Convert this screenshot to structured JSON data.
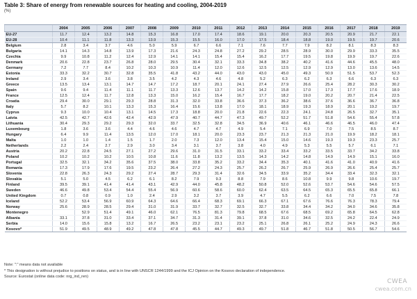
{
  "title": "Table 3: Share of energy from renewable sources for heating and cooling, 2004-2019",
  "subtitle": "(%)",
  "years": [
    "2004",
    "2005",
    "2006",
    "2007",
    "2008",
    "2009",
    "2010",
    "2011",
    "2012",
    "2013",
    "2014",
    "2015",
    "2016",
    "2017",
    "2018",
    "2019"
  ],
  "rows": [
    {
      "name": "EU-27",
      "group": "agg",
      "values": [
        "11.7",
        "12.4",
        "13.2",
        "14.8",
        "15.3",
        "16.8",
        "17.0",
        "17.4",
        "18.6",
        "19.1",
        "20.0",
        "20.3",
        "20.5",
        "20.9",
        "21.7",
        "22.1"
      ]
    },
    {
      "name": "EU-28",
      "group": "agg",
      "values": [
        "10.4",
        "11.1",
        "11.8",
        "13.3",
        "13.9",
        "15.3",
        "15.5",
        "16.0",
        "17.0",
        "17.5",
        "18.4",
        "18.8",
        "19.0",
        "19.5",
        "19.7",
        "20.6"
      ]
    },
    {
      "name": "Belgium",
      "values": [
        "2.8",
        "3.4",
        "3.7",
        "4.6",
        "5.0",
        "5.9",
        "6.7",
        "6.6",
        "7.1",
        "7.6",
        "7.7",
        "7.9",
        "8.2",
        "8.1",
        "8.3",
        "8.3"
      ]
    },
    {
      "name": "Bulgaria",
      "values": [
        "14.1",
        "14.3",
        "14.8",
        "13.9",
        "17.3",
        "21.6",
        "24.3",
        "24.8",
        "27.2",
        "29.2",
        "28.5",
        "28.9",
        "30.0",
        "29.9",
        "33.3",
        "35.5"
      ]
    },
    {
      "name": "Czechia",
      "values": [
        "9.9",
        "10.8",
        "11.2",
        "12.4",
        "12.9",
        "14.1",
        "14.1",
        "15.4",
        "15.4",
        "16.2",
        "17.7",
        "19.5",
        "19.8",
        "19.9",
        "19.7",
        "22.6"
      ]
    },
    {
      "name": "Denmark",
      "values": [
        "20.6",
        "22.8",
        "23.7",
        "26.8",
        "28.0",
        "29.5",
        "30.4",
        "32.1",
        "33.3",
        "34.8",
        "38.2",
        "40.2",
        "41.6",
        "44.6",
        "45.5",
        "48.0"
      ]
    },
    {
      "name": "Germany",
      "values": [
        "7.2",
        "7.7",
        "8.4",
        "10.2",
        "10.3",
        "10.9",
        "11.4",
        "12.0",
        "12.6",
        "12.5",
        "12.5",
        "12.9",
        "12.9",
        "13.0",
        "13.6",
        "14.5"
      ]
    },
    {
      "name": "Estonia",
      "values": [
        "33.3",
        "32.2",
        "30.7",
        "32.8",
        "35.5",
        "41.8",
        "43.2",
        "44.0",
        "43.0",
        "43.0",
        "45.0",
        "49.3",
        "50.9",
        "51.5",
        "53.7",
        "52.3"
      ]
    },
    {
      "name": "Ireland",
      "values": [
        "2.9",
        "3.4",
        "3.6",
        "3.8",
        "3.5",
        "4.2",
        "4.3",
        "4.6",
        "4.8",
        "5.2",
        "6.3",
        "6.2",
        "6.3",
        "6.6",
        "6.3",
        "6.3"
      ]
    },
    {
      "name": "Greece",
      "values": [
        "13.5",
        "13.4",
        "13.1",
        "14.7",
        "14.7",
        "17.2",
        "18.7",
        "20.1",
        "24.1",
        "27.4",
        "27.9",
        "26.6",
        "25.4",
        "28.2",
        "30.3",
        "30.2"
      ]
    },
    {
      "name": "Spain",
      "values": [
        "9.6",
        "9.4",
        "11.4",
        "11.1",
        "11.7",
        "13.3",
        "12.6",
        "13.7",
        "14.2",
        "14.2",
        "15.8",
        "17.0",
        "17.3",
        "17.7",
        "17.6",
        "18.9"
      ]
    },
    {
      "name": "France",
      "values": [
        "12.5",
        "12.4",
        "11.7",
        "12.8",
        "13.3",
        "15.0",
        "16.2",
        "15.4",
        "16.7",
        "17.7",
        "18.2",
        "19.0",
        "20.2",
        "20.7",
        "21.4",
        "22.5"
      ]
    },
    {
      "name": "Croatia",
      "values": [
        "29.4",
        "30.0",
        "29.1",
        "29.3",
        "28.8",
        "31.3",
        "32.0",
        "33.8",
        "36.6",
        "37.3",
        "36.2",
        "38.6",
        "37.6",
        "36.6",
        "36.7",
        "36.8"
      ]
    },
    {
      "name": "Italy",
      "values": [
        "5.7",
        "8.2",
        "10.1",
        "13.3",
        "15.3",
        "16.4",
        "15.6",
        "13.8",
        "17.0",
        "18.1",
        "18.9",
        "19.3",
        "18.9",
        "20.1",
        "19.2",
        "19.7"
      ]
    },
    {
      "name": "Cyprus",
      "values": [
        "9.3",
        "10.0",
        "10.4",
        "13.1",
        "14.5",
        "17.3",
        "18.8",
        "20.0",
        "21.8",
        "22.6",
        "22.3",
        "24.1",
        "24.8",
        "26.5",
        "32.7",
        "35.1"
      ]
    },
    {
      "name": "Latvia",
      "values": [
        "42.5",
        "42.7",
        "42.6",
        "42.4",
        "42.9",
        "47.9",
        "40.7",
        "44.7",
        "47.3",
        "49.7",
        "52.2",
        "51.7",
        "51.8",
        "54.6",
        "55.4",
        "57.8"
      ]
    },
    {
      "name": "Lithuania",
      "values": [
        "30.4",
        "29.3",
        "29.2",
        "29.3",
        "32.0",
        "33.7",
        "32.5",
        "32.8",
        "34.5",
        "36.9",
        "40.6",
        "46.1",
        "46.6",
        "46.5",
        "46.0",
        "47.4"
      ]
    },
    {
      "name": "Luxembourg",
      "values": [
        "1.8",
        "3.6",
        "3.6",
        "4.4",
        "4.6",
        "4.6",
        "4.7",
        "4.7",
        "4.9",
        "5.4",
        "7.1",
        "6.9",
        "7.0",
        "7.5",
        "8.5",
        "8.7"
      ]
    },
    {
      "name": "Hungary",
      "values": [
        "6.4",
        "9.9",
        "11.4",
        "13.5",
        "12.0",
        "17.0",
        "18.1",
        "20.0",
        "23.3",
        "23.7",
        "21.3",
        "21.3",
        "21.0",
        "19.9",
        "18.2",
        "18.1"
      ]
    },
    {
      "name": "Malta",
      "values": [
        "1.0",
        "1.0",
        "1.4",
        "1.5",
        "1.7",
        "2.0",
        "7.3",
        "12.0",
        "13.4",
        "15.4",
        "15.0",
        "14.6",
        "19.3",
        "19.3",
        "23.3",
        "25.7"
      ]
    },
    {
      "name": "Netherlands",
      "values": [
        "2.2",
        "2.4",
        "2.7",
        "2.9",
        "3.0",
        "3.4",
        "3.1",
        "3.7",
        "3.8",
        "4.0",
        "4.9",
        "5.3",
        "5.5",
        "5.7",
        "6.1",
        "7.1"
      ]
    },
    {
      "name": "Austria",
      "values": [
        "20.2",
        "22.8",
        "24.5",
        "27.1",
        "27.2",
        "29.6",
        "31.0",
        "31.5",
        "33.1",
        "33.2",
        "33.4",
        "33.2",
        "33.5",
        "33.7",
        "34.2",
        "33.8"
      ]
    },
    {
      "name": "Poland",
      "values": [
        "10.2",
        "10.2",
        "10.2",
        "10.5",
        "10.8",
        "11.6",
        "11.8",
        "13.2",
        "13.5",
        "14.3",
        "14.2",
        "14.8",
        "14.9",
        "14.9",
        "15.1",
        "16.0"
      ]
    },
    {
      "name": "Portugal",
      "values": [
        "32.5",
        "32.1",
        "34.2",
        "35.6",
        "37.5",
        "38.0",
        "33.8",
        "35.2",
        "33.2",
        "34.4",
        "35.3",
        "40.1",
        "41.6",
        "41.0",
        "40.9",
        "41.6"
      ]
    },
    {
      "name": "Romania",
      "values": [
        "17.3",
        "17.9",
        "17.6",
        "19.5",
        "23.2",
        "26.4",
        "27.2",
        "24.3",
        "25.7",
        "26.2",
        "26.7",
        "25.9",
        "26.9",
        "26.6",
        "25.4",
        "25.7"
      ]
    },
    {
      "name": "Slovenia",
      "values": [
        "22.8",
        "26.3",
        "24.3",
        "29.2",
        "27.4",
        "28.7",
        "29.3",
        "31.4",
        "32.6",
        "34.5",
        "33.9",
        "35.2",
        "34.4",
        "33.4",
        "32.3",
        "32.1"
      ]
    },
    {
      "name": "Slovakia",
      "values": [
        "5.1",
        "5.0",
        "4.5",
        "6.2",
        "6.1",
        "8.2",
        "7.9",
        "9.3",
        "8.8",
        "7.9",
        "8.6",
        "10.8",
        "9.9",
        "9.8",
        "10.6",
        "19.7"
      ]
    },
    {
      "name": "Finland",
      "values": [
        "39.5",
        "39.1",
        "41.4",
        "41.4",
        "43.1",
        "42.9",
        "44.0",
        "45.8",
        "48.2",
        "50.8",
        "52.0",
        "52.6",
        "53.7",
        "54.6",
        "54.6",
        "57.5"
      ]
    },
    {
      "name": "Sweden",
      "values": [
        "46.6",
        "49.8",
        "53.4",
        "54.4",
        "55.4",
        "56.9",
        "60.6",
        "58.6",
        "60.0",
        "62.4",
        "63.5",
        "64.5",
        "65.3",
        "65.5",
        "65.8",
        "66.1"
      ]
    },
    {
      "name": "United Kingdom",
      "values": [
        "0.7",
        "0.8",
        "0.9",
        "1.0",
        "2.4",
        "2.9",
        "3.2",
        "3.7",
        "3.9",
        "4.7",
        "5.5",
        "6.2",
        "6.6",
        "7.0",
        "7.5",
        "7.8"
      ]
    },
    {
      "name": "Iceland",
      "sep": true,
      "values": [
        "52.2",
        "53.4",
        "56.9",
        "60.9",
        "64.3",
        "64.6",
        "66.4",
        "68.3",
        "69.1",
        "66.3",
        "67.1",
        "67.6",
        "76.6",
        "76.3",
        "78.3",
        "79.4"
      ]
    },
    {
      "name": "Norway",
      "values": [
        "25.6",
        "28.9",
        "28.5",
        "29.4",
        "31.0",
        "31.9",
        "33.7",
        "32.7",
        "32.5",
        "32.7",
        "33.8",
        "34.4",
        "34.2",
        "34.0",
        "34.6",
        "35.8"
      ]
    },
    {
      "name": "Montenegro",
      "sep": true,
      "values": [
        "",
        "52.9",
        "51.4",
        "49.1",
        "46.0",
        "62.1",
        "76.5",
        "81.3",
        "79.8",
        "68.5",
        "67.6",
        "68.5",
        "69.2",
        "65.8",
        "64.5",
        "62.8"
      ]
    },
    {
      "name": "Albania",
      "values": [
        "33.1",
        "37.8",
        "31.0",
        "33.4",
        "37.1",
        "34.7",
        "31.3",
        "31.4",
        "39.1",
        "37.8",
        "31.0",
        "34.6",
        "32.5",
        "24.2",
        "22.4",
        "24.9"
      ]
    },
    {
      "name": "Serbia",
      "values": [
        "14.0",
        "15.6",
        "15.8",
        "13.2",
        "16.7",
        "26.5",
        "23.2",
        "23.1",
        "23.2",
        "25.1",
        "26.8",
        "26.1",
        "25.2",
        "24.9",
        "24.3",
        "26.6"
      ]
    },
    {
      "name": "Kosovo*",
      "sep": true,
      "last": true,
      "values": [
        "51.9",
        "49.5",
        "48.9",
        "49.2",
        "47.8",
        "47.8",
        "45.5",
        "44.7",
        "49.3",
        "49.7",
        "51.8",
        "46.7",
        "51.8",
        "50.5",
        "56.7",
        "54.6"
      ]
    }
  ],
  "notes": [
    "Note: \":\" means data not available",
    "* This designation is without prejudice to positions on status, and is in line with UNSCR 1244/1999 and the ICJ Opinion on the Kosovo declaration of independence.",
    "Source: Eurostat (online data code: nrg_ind_ren)"
  ],
  "watermark": "CWEA",
  "watermark2": "cwea.com.cn"
}
